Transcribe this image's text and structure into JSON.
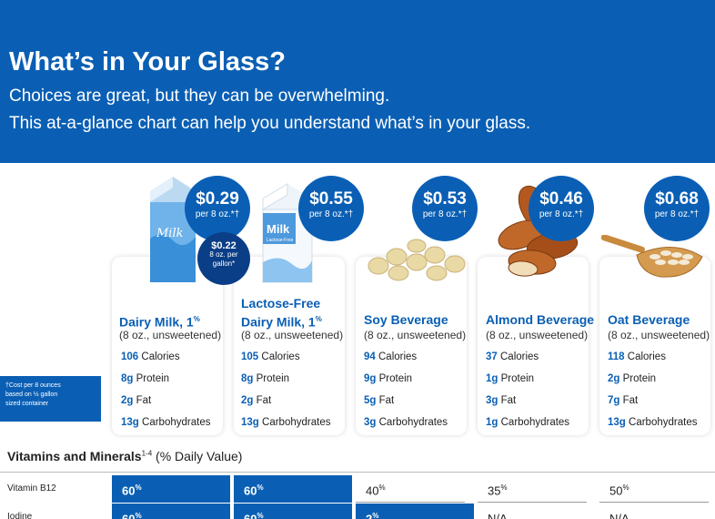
{
  "banner": {
    "title": "What’s in Your Glass?",
    "line1": "Choices are great, but they can be overwhelming.",
    "line2": "This at-a-glance chart can help you understand what’s in your glass."
  },
  "products": [
    {
      "name": "Dairy Milk, 1%",
      "serving": "(8 oz., unsweetened)",
      "price": "$0.29",
      "price_unit": "per 8 oz.*†",
      "calories": "106",
      "protein": "8g",
      "fat": "2g",
      "carbs": "13g"
    },
    {
      "name_line1": "Lactose-Free",
      "name_line2": "Dairy Milk, 1%",
      "serving": "(8 oz., unsweetened)",
      "price": "$0.55",
      "price_unit": "per 8 oz.*†",
      "calories": "105",
      "protein": "8g",
      "fat": "2g",
      "carbs": "13g"
    },
    {
      "name": "Soy Beverage",
      "serving": "(8 oz., unsweetened)",
      "price": "$0.53",
      "price_unit": "per 8 oz.*†",
      "calories": "94",
      "protein": "9g",
      "fat": "5g",
      "carbs": "3g"
    },
    {
      "name": "Almond Beverage",
      "serving": "(8 oz., unsweetened)",
      "price": "$0.46",
      "price_unit": "per 8 oz.*†",
      "calories": "37",
      "protein": "1g",
      "fat": "3g",
      "carbs": "1g"
    },
    {
      "name": "Oat Beverage",
      "serving": "(8 oz., unsweetened)",
      "price": "$0.68",
      "price_unit": "per 8 oz.*†",
      "calories": "118",
      "protein": "2g",
      "fat": "7g",
      "carbs": "13g"
    }
  ],
  "labels": {
    "calories": "Calories",
    "protein": "Protein",
    "fat": "Fat",
    "carbs": "Carbohydrates"
  },
  "gallon_price": {
    "amount": "$0.22",
    "line1": "8 oz. per",
    "line2": "gallon*"
  },
  "carton_labels": {
    "milk_script": "Milk",
    "milk_box": "Milk",
    "lactose_free": "Lactose-Free"
  },
  "footnote": {
    "line1": "†Cost per 8 ounces",
    "line2": "based on ½ gallon",
    "line3": "sized container"
  },
  "vitamins": {
    "title": "Vitamins and Minerals",
    "title_sup": "1-4",
    "subtitle": "(% Daily Value)",
    "rows": [
      {
        "label": "Vitamin B12",
        "values": [
          "60",
          "60",
          "40",
          "35",
          "50"
        ],
        "fill": [
          true,
          true,
          false,
          false,
          false
        ]
      },
      {
        "label": "Iodine",
        "values": [
          "60",
          "60",
          "2",
          "N/A",
          "N/A"
        ],
        "fill": [
          true,
          true,
          true,
          false,
          false
        ]
      }
    ],
    "pct": "%"
  },
  "colors": {
    "brand_blue": "#0a5fb4",
    "dark_blue": "#0a3e86"
  }
}
